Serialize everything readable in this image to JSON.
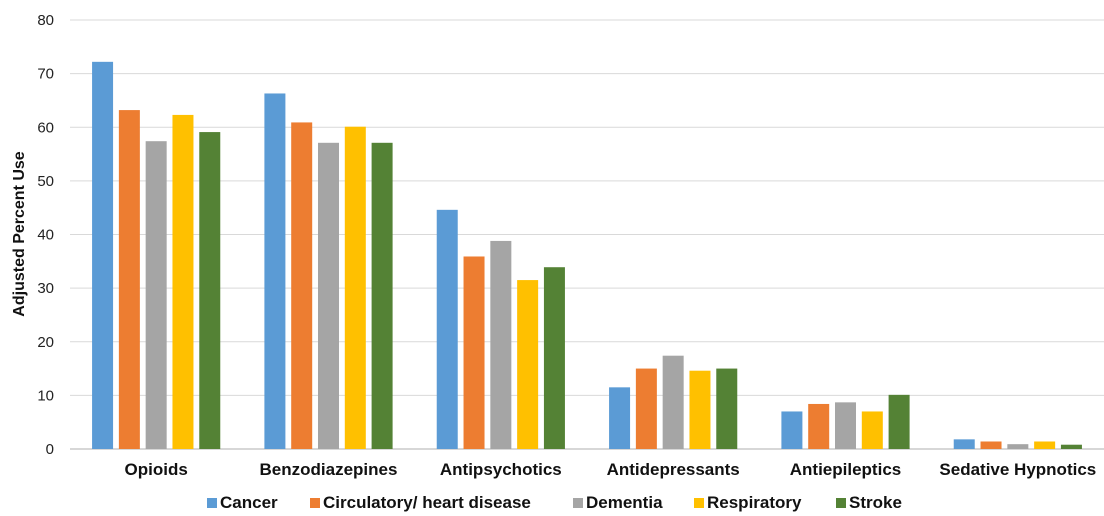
{
  "chart_data": {
    "type": "bar",
    "title": "",
    "xlabel": "",
    "ylabel": "Adjusted Percent Use",
    "ylim": [
      0,
      80
    ],
    "yticks": [
      0,
      10,
      20,
      30,
      40,
      50,
      60,
      70,
      80
    ],
    "grid": true,
    "legend_position": "bottom",
    "categories": [
      "Opioids",
      "Benzodiazepines",
      "Antipsychotics",
      "Antidepressants",
      "Antiepileptics",
      "Sedative Hypnotics"
    ],
    "series": [
      {
        "name": "Cancer",
        "color": "#5b9bd5",
        "values": [
          72.2,
          66.3,
          44.6,
          11.5,
          7.0,
          1.8
        ]
      },
      {
        "name": "Circulatory/ heart disease",
        "color": "#ed7d31",
        "values": [
          63.2,
          60.9,
          35.9,
          15.0,
          8.4,
          1.4
        ]
      },
      {
        "name": "Dementia",
        "color": "#a5a5a5",
        "values": [
          57.4,
          57.1,
          38.8,
          17.4,
          8.7,
          0.9
        ]
      },
      {
        "name": "Respiratory",
        "color": "#ffc000",
        "values": [
          62.3,
          60.1,
          31.5,
          14.6,
          7.0,
          1.4
        ]
      },
      {
        "name": "Stroke",
        "color": "#548235",
        "values": [
          59.1,
          57.1,
          33.9,
          15.0,
          10.1,
          0.8
        ]
      }
    ]
  }
}
